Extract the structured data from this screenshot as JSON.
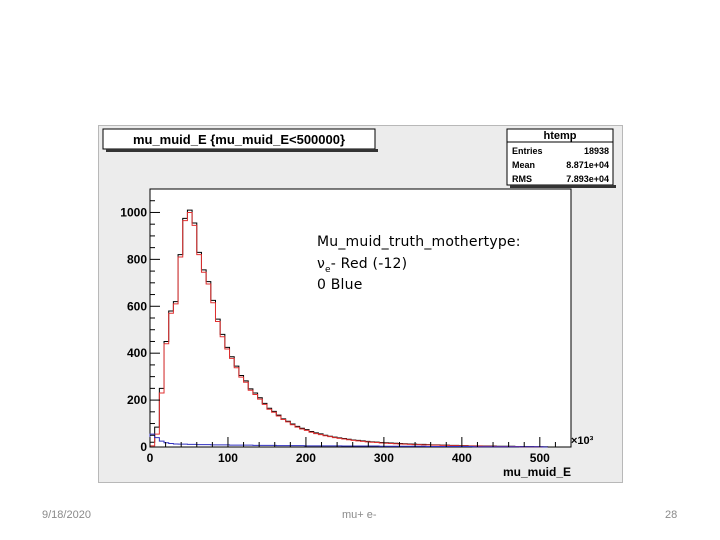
{
  "slide": {
    "footer_date": "9/18/2020",
    "footer_center": "mu+ e-",
    "footer_page": "28"
  },
  "annotation": {
    "line1": "Mu_muid_truth_mothertype:",
    "line2_symbol": "ν",
    "line2_sub": "e",
    "line2_rest": "- Red (-12)",
    "line3": "0 Blue"
  },
  "chart_data": {
    "type": "histogram",
    "title": "mu_muid_E {mu_muid_E<500000}",
    "xlabel": "mu_muid_E",
    "x_multiplier": "×10³",
    "xlim": [
      0,
      540
    ],
    "ylim": [
      0,
      1100
    ],
    "x_ticks": [
      0,
      100,
      200,
      300,
      400,
      500
    ],
    "y_ticks": [
      0,
      200,
      400,
      600,
      800,
      1000
    ],
    "bin_width": 6,
    "stats_box": {
      "name": "htemp",
      "rows": [
        {
          "label": "Entries",
          "value": "18938"
        },
        {
          "label": "Mean",
          "value": "8.871e+04"
        },
        {
          "label": "RMS",
          "value": "7.893e+04"
        }
      ]
    },
    "series": [
      {
        "color": "#000000",
        "values": [
          20,
          85,
          250,
          450,
          580,
          620,
          820,
          975,
          1010,
          955,
          830,
          755,
          705,
          625,
          545,
          480,
          425,
          385,
          345,
          305,
          282,
          248,
          230,
          210,
          186,
          165,
          152,
          136,
          120,
          110,
          98,
          88,
          80,
          74,
          66,
          60,
          56,
          50,
          46,
          42,
          39,
          36,
          33,
          30,
          28,
          26,
          24,
          22,
          21,
          19,
          18,
          17,
          16,
          15,
          14,
          13,
          12,
          11,
          11,
          10,
          9,
          9,
          8,
          8,
          7,
          7,
          6,
          6,
          5,
          5,
          5,
          4,
          4,
          4,
          3,
          3,
          3,
          3,
          2,
          2,
          2,
          2,
          1,
          1,
          1
        ]
      },
      {
        "color": "#e03030",
        "values": [
          5,
          55,
          230,
          440,
          570,
          610,
          810,
          965,
          1000,
          945,
          820,
          745,
          695,
          615,
          535,
          470,
          418,
          378,
          338,
          298,
          276,
          242,
          224,
          204,
          182,
          161,
          148,
          132,
          117,
          107,
          95,
          85,
          77,
          71,
          63,
          57,
          53,
          48,
          44,
          40,
          37,
          34,
          31,
          28,
          26,
          24,
          22,
          20,
          19,
          17,
          16,
          15,
          14,
          13,
          12,
          11,
          10,
          10,
          9,
          9,
          8,
          8,
          7,
          7,
          6,
          6,
          5,
          5,
          4,
          4,
          4,
          3,
          3,
          3,
          2,
          2,
          2,
          2,
          2,
          1,
          1,
          1,
          1,
          1,
          0
        ]
      },
      {
        "color": "#3030c0",
        "values": [
          55,
          40,
          25,
          18,
          15,
          13,
          12,
          12,
          11,
          11,
          10,
          10,
          10,
          9,
          9,
          9,
          9,
          8,
          8,
          8,
          8,
          8,
          7,
          7,
          7,
          7,
          7,
          6,
          6,
          6,
          6,
          6,
          6,
          5,
          5,
          5,
          5,
          5,
          5,
          5,
          5,
          4,
          4,
          4,
          4,
          4,
          4,
          4,
          4,
          3,
          3,
          3,
          3,
          3,
          3,
          3,
          3,
          3,
          3,
          2,
          2,
          2,
          2,
          2,
          2,
          2,
          2,
          2,
          2,
          1,
          1,
          1,
          1,
          1,
          1,
          1,
          1,
          1,
          1,
          1,
          1,
          1,
          1,
          1,
          0
        ]
      }
    ]
  }
}
